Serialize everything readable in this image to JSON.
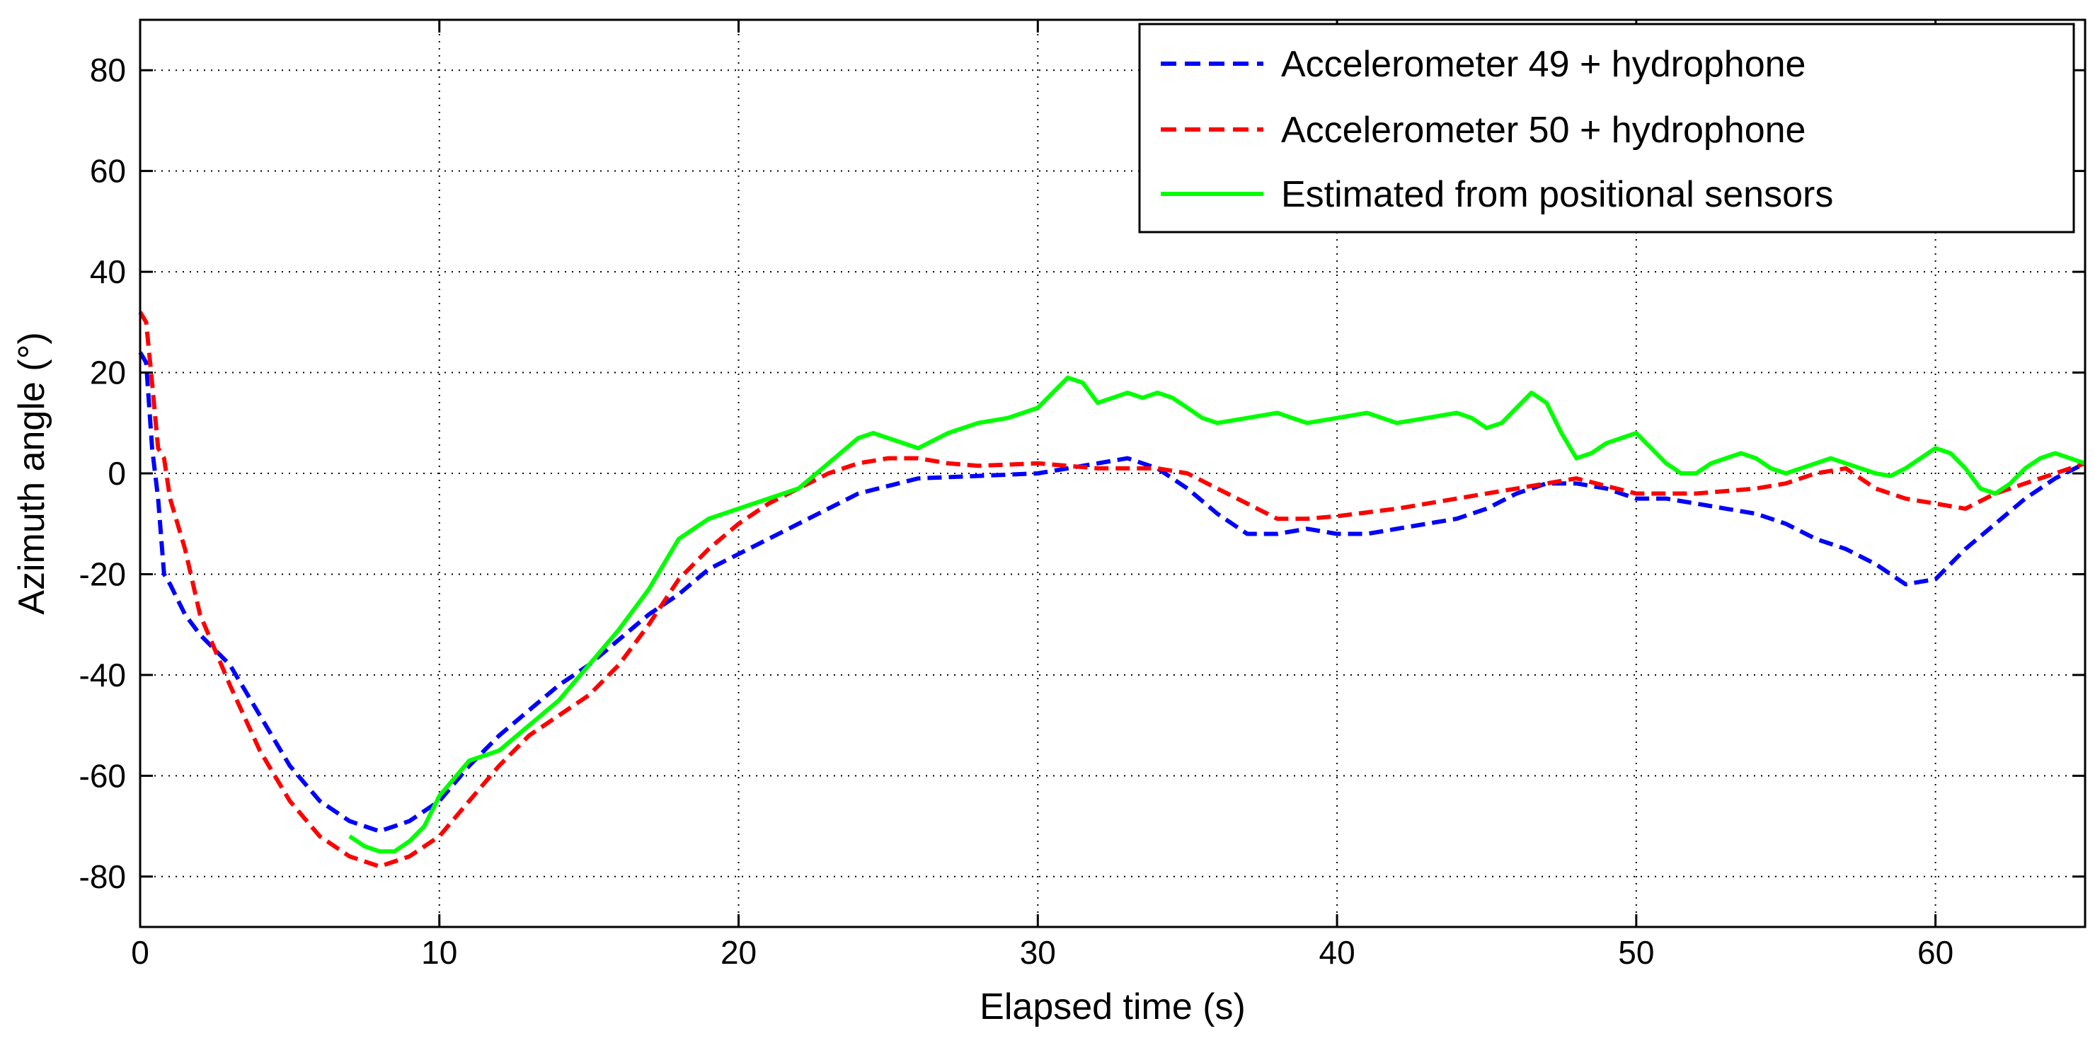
{
  "chart_data": {
    "type": "line",
    "title": "",
    "xlabel": "Elapsed time (s)",
    "ylabel": "Azimuth angle (°)",
    "xlim": [
      0,
      65
    ],
    "ylim": [
      -90,
      90
    ],
    "x_ticks": [
      0,
      10,
      20,
      30,
      40,
      50,
      60
    ],
    "x_tick_labels": [
      "0",
      "10",
      "20",
      "30",
      "40",
      "50",
      "60"
    ],
    "y_ticks": [
      80,
      60,
      40,
      20,
      0,
      -20,
      -40,
      -60,
      -80
    ],
    "y_tick_labels": [
      "80",
      "60",
      "40",
      "20",
      "0",
      "-20",
      "-40",
      "-60",
      "-80"
    ],
    "grid": true,
    "legend_position": "top-right",
    "series": [
      {
        "name": "Accelerometer 49 + hydrophone",
        "color": "#0000ff",
        "style": "dashed",
        "x": [
          0,
          0.2,
          0.4,
          0.6,
          0.8,
          1.0,
          1.5,
          2,
          3,
          4,
          5,
          6,
          7,
          7.5,
          8,
          8.5,
          9,
          10,
          11,
          12,
          13,
          14,
          15,
          16,
          17,
          18,
          19,
          20,
          22,
          24,
          26,
          28,
          30,
          31,
          32,
          33,
          34,
          35,
          36,
          37,
          38,
          39,
          40,
          41,
          42,
          43,
          44,
          45,
          46,
          47,
          48,
          49,
          50,
          51,
          52,
          53,
          54,
          55,
          56,
          57,
          58,
          59,
          60,
          61,
          62,
          63,
          64,
          65
        ],
        "y": [
          24,
          22,
          5,
          -5,
          -20,
          -22,
          -28,
          -32,
          -38,
          -48,
          -58,
          -65,
          -69,
          -70,
          -71,
          -70,
          -69,
          -65,
          -58,
          -52,
          -47,
          -42,
          -38,
          -33,
          -28,
          -24,
          -19,
          -16,
          -10,
          -4,
          -1,
          -0.5,
          0,
          1,
          2,
          3,
          1,
          -3,
          -8,
          -12,
          -12,
          -11,
          -12,
          -12,
          -11,
          -10,
          -9,
          -7,
          -4,
          -2,
          -2,
          -3,
          -5,
          -5,
          -6,
          -7,
          -8,
          -10,
          -13,
          -15,
          -18,
          -22,
          -21,
          -15,
          -10,
          -5,
          -1,
          2
        ]
      },
      {
        "name": "Accelerometer 50 + hydrophone",
        "color": "#ff0000",
        "style": "dashed",
        "x": [
          0,
          0.2,
          0.4,
          0.6,
          0.8,
          1.0,
          1.5,
          2,
          3,
          4,
          5,
          6,
          7,
          7.5,
          8,
          8.5,
          9,
          10,
          11,
          12,
          13,
          14,
          15,
          16,
          17,
          18,
          19,
          20,
          21,
          22,
          23,
          24,
          25,
          26,
          27,
          28,
          30,
          32,
          33,
          34,
          35,
          36,
          37,
          38,
          39,
          40,
          42,
          44,
          46,
          47,
          48,
          50,
          52,
          54,
          55,
          56,
          57,
          58,
          59,
          60,
          61,
          62,
          63,
          64,
          65
        ],
        "y": [
          32,
          30,
          18,
          5,
          3,
          -5,
          -15,
          -28,
          -42,
          -55,
          -65,
          -72,
          -76,
          -77,
          -78,
          -77,
          -76,
          -72,
          -65,
          -58,
          -52,
          -48,
          -44,
          -38,
          -30,
          -21,
          -15,
          -10,
          -6,
          -3,
          0,
          2,
          3,
          3,
          2,
          1.5,
          2,
          1,
          1,
          1,
          0,
          -3,
          -6,
          -9,
          -9,
          -8.5,
          -7,
          -5,
          -3,
          -2,
          -1,
          -4,
          -4,
          -3,
          -2,
          0,
          1,
          -3,
          -5,
          -6,
          -7,
          -4,
          -2,
          0,
          2
        ]
      },
      {
        "name": "Estimated from positional sensors",
        "color": "#00ff00",
        "style": "solid",
        "x": [
          7,
          7.5,
          8,
          8.5,
          9,
          9.5,
          10,
          11,
          12,
          13,
          14,
          15,
          16,
          17,
          18,
          19,
          20,
          21,
          22,
          23,
          24,
          24.5,
          25,
          26,
          27,
          28,
          29,
          30,
          30.5,
          31,
          31.5,
          32,
          32.5,
          33,
          33.5,
          34,
          34.5,
          35,
          35.5,
          36,
          37,
          38,
          39,
          40,
          41,
          42,
          43,
          44,
          44.5,
          45,
          45.5,
          46,
          46.5,
          47,
          47.5,
          48,
          48.5,
          49,
          49.5,
          50,
          50.5,
          51,
          51.5,
          52,
          52.5,
          53,
          53.5,
          54,
          54.5,
          55,
          55.5,
          56,
          56.5,
          57,
          57.5,
          58,
          58.5,
          59,
          59.5,
          60,
          60.5,
          61,
          61.5,
          62,
          62.5,
          63,
          63.5,
          64,
          64.5,
          65
        ],
        "y": [
          -72,
          -74,
          -75,
          -75,
          -73,
          -70,
          -64,
          -57,
          -55,
          -50,
          -45,
          -38,
          -31,
          -23,
          -13,
          -9,
          -7,
          -5,
          -3,
          2,
          7,
          8,
          7,
          5,
          8,
          10,
          11,
          13,
          16,
          19,
          18,
          14,
          15,
          16,
          15,
          16,
          15,
          13,
          11,
          10,
          11,
          12,
          10,
          11,
          12,
          10,
          11,
          12,
          11,
          9,
          10,
          13,
          16,
          14,
          8,
          3,
          4,
          6,
          7,
          8,
          5,
          2,
          0,
          0,
          2,
          3,
          4,
          3,
          1,
          0,
          1,
          2,
          3,
          2,
          1,
          0,
          -0.5,
          1,
          3,
          5,
          4,
          1,
          -3,
          -4,
          -2,
          1,
          3,
          4,
          3,
          2
        ]
      }
    ]
  }
}
